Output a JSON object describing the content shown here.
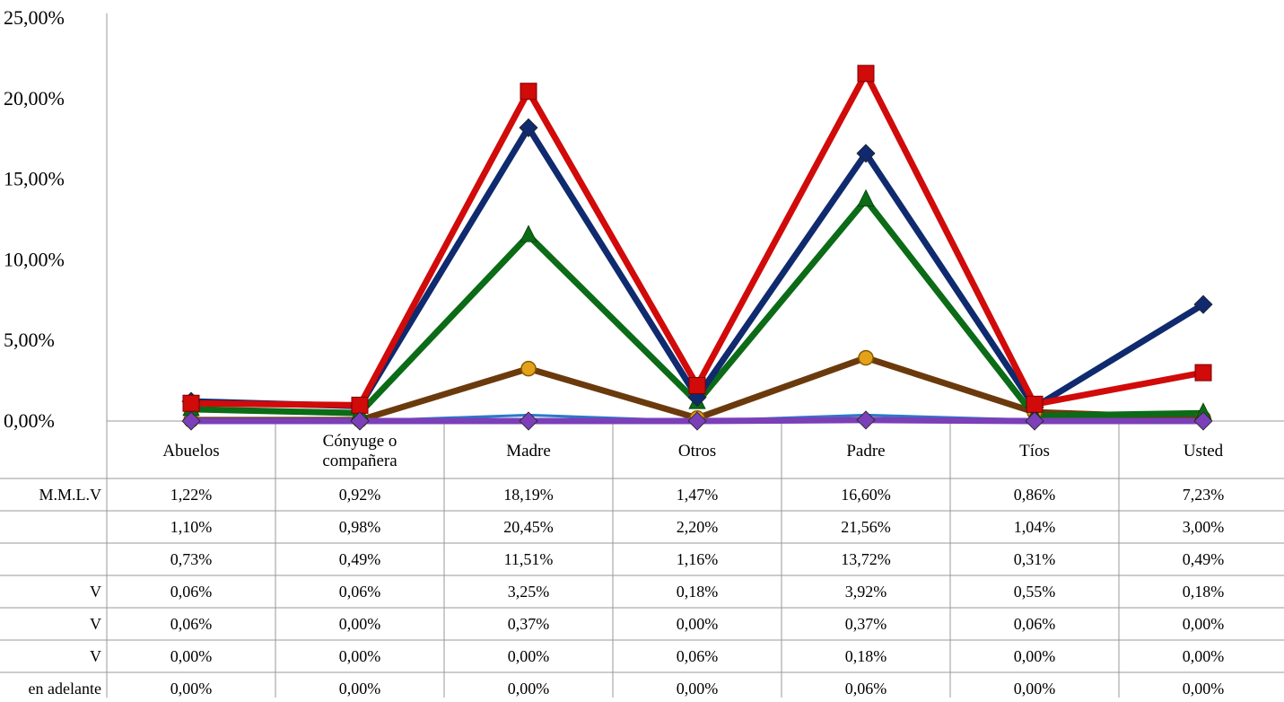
{
  "chart_data": {
    "type": "line",
    "categories": [
      "Abuelos",
      "Cónyuge o\ncompañera",
      "Madre",
      "Otros",
      "Padre",
      "Tíos",
      "Usted"
    ],
    "ylim": [
      0,
      25
    ],
    "yticks": [
      "0,00%",
      "5,00%",
      "10,00%",
      "15,00%",
      "20,00%",
      "25,00%"
    ],
    "series": [
      {
        "name": "M.M.L.V",
        "color": "#0f2a6e",
        "marker": "diamond",
        "values": [
          1.22,
          0.92,
          18.19,
          1.47,
          16.6,
          0.86,
          7.23
        ],
        "labels": [
          "1,22%",
          "0,92%",
          "18,19%",
          "1,47%",
          "16,60%",
          "0,86%",
          "7,23%"
        ]
      },
      {
        "name": "",
        "color": "#d10a0a",
        "marker": "square",
        "values": [
          1.1,
          0.98,
          20.45,
          2.2,
          21.56,
          1.04,
          3.0
        ],
        "labels": [
          "1,10%",
          "0,98%",
          "20,45%",
          "2,20%",
          "21,56%",
          "1,04%",
          "3,00%"
        ]
      },
      {
        "name": "",
        "color": "#0b6b16",
        "marker": "triangle",
        "values": [
          0.73,
          0.49,
          11.51,
          1.16,
          13.72,
          0.31,
          0.49
        ],
        "labels": [
          "0,73%",
          "0,49%",
          "11,51%",
          "1,16%",
          "13,72%",
          "0,31%",
          "0,49%"
        ]
      },
      {
        "name": "V",
        "color": "#6b3a0c",
        "marker": "circle",
        "values": [
          0.06,
          0.06,
          3.25,
          0.18,
          3.92,
          0.55,
          0.18
        ],
        "labels": [
          "0,06%",
          "0,06%",
          "3,25%",
          "0,18%",
          "3,92%",
          "0,55%",
          "0,18%"
        ]
      },
      {
        "name": "V",
        "color": "#2a7ac9",
        "marker": "none",
        "values": [
          0.06,
          0.0,
          0.37,
          0.0,
          0.37,
          0.06,
          0.0
        ],
        "labels": [
          "0,06%",
          "0,00%",
          "0,37%",
          "0,00%",
          "0,37%",
          "0,06%",
          "0,00%"
        ]
      },
      {
        "name": "V",
        "color": "#e08a1e",
        "marker": "none",
        "values": [
          0.0,
          0.0,
          0.0,
          0.06,
          0.18,
          0.0,
          0.0
        ],
        "labels": [
          "0,00%",
          "0,00%",
          "0,00%",
          "0,06%",
          "0,18%",
          "0,00%",
          "0,00%"
        ]
      },
      {
        "name": "en adelante",
        "color": "#7b3fb8",
        "marker": "diamond",
        "values": [
          0.0,
          0.0,
          0.0,
          0.0,
          0.06,
          0.0,
          0.0
        ],
        "labels": [
          "0,00%",
          "0,00%",
          "0,00%",
          "0,00%",
          "0,06%",
          "0,00%",
          "0,00%"
        ]
      }
    ]
  }
}
